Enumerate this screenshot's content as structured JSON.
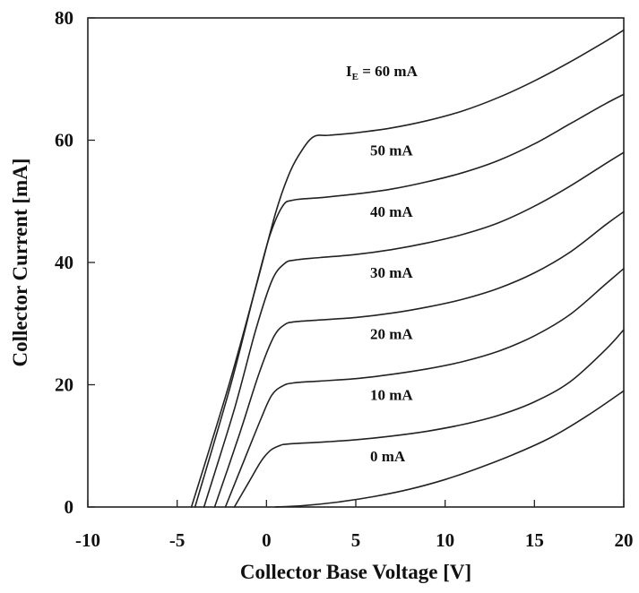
{
  "chart_data": {
    "type": "line",
    "title": "",
    "xlabel": "Collector Base Voltage [V]",
    "ylabel": "Collector Current [mA]",
    "xlim": [
      -10,
      20
    ],
    "ylim": [
      0,
      80
    ],
    "xticks": [
      -10,
      -5,
      0,
      5,
      10,
      15,
      20
    ],
    "yticks": [
      0,
      20,
      40,
      60,
      80
    ],
    "xtick_labels": [
      "-10",
      "-5",
      "0",
      "5",
      "10",
      "15",
      "20"
    ],
    "ytick_labels": [
      "0",
      "20",
      "40",
      "60",
      "80"
    ],
    "grid": false,
    "legend": "none",
    "series": [
      {
        "name": "0 mA",
        "label_main": "0 mA",
        "label_sub": "",
        "x": [
          0.5,
          2,
          4,
          6,
          8,
          10,
          12,
          14,
          16,
          18,
          20
        ],
        "y": [
          0,
          0.2,
          0.8,
          1.7,
          2.9,
          4.5,
          6.5,
          8.8,
          11.5,
          15,
          19
        ]
      },
      {
        "name": "10 mA",
        "label_main": "10 mA",
        "label_sub": "",
        "x": [
          -1.8,
          -1.0,
          -0.3,
          0.2,
          0.7,
          1.2,
          3,
          5,
          7,
          9,
          11,
          13,
          15,
          17,
          19,
          20
        ],
        "y": [
          0,
          4,
          7.5,
          9.2,
          10.0,
          10.3,
          10.6,
          11.0,
          11.6,
          12.4,
          13.5,
          15.0,
          17.2,
          20.5,
          25.8,
          29
        ]
      },
      {
        "name": "20 mA",
        "label_main": "20 mA",
        "label_sub": "",
        "x": [
          -2.3,
          -1.2,
          -0.3,
          0.3,
          0.9,
          1.5,
          3,
          5,
          7,
          9,
          11,
          13,
          15,
          17,
          19,
          20
        ],
        "y": [
          0,
          8,
          14.5,
          18.3,
          19.8,
          20.3,
          20.6,
          21.0,
          21.7,
          22.6,
          23.8,
          25.5,
          28.0,
          31.5,
          36.5,
          39
        ]
      },
      {
        "name": "30 mA",
        "label_main": "30 mA",
        "label_sub": "",
        "x": [
          -2.9,
          -1.5,
          -0.4,
          0.4,
          1.0,
          1.6,
          3,
          5,
          7,
          9,
          11,
          13,
          15,
          17,
          19,
          20
        ],
        "y": [
          0,
          12,
          22,
          27.8,
          29.8,
          30.3,
          30.6,
          31.0,
          31.7,
          32.7,
          34.0,
          35.8,
          38.3,
          41.7,
          46.2,
          48.3
        ]
      },
      {
        "name": "40 mA",
        "label_main": "40 mA",
        "label_sub": "",
        "x": [
          -3.5,
          -1.8,
          -0.6,
          0.3,
          1.0,
          1.6,
          3,
          5,
          7,
          9,
          11,
          13,
          15,
          17,
          19,
          20
        ],
        "y": [
          0,
          16,
          29,
          37,
          39.8,
          40.4,
          40.8,
          41.3,
          42.1,
          43.2,
          44.6,
          46.5,
          49.2,
          52.5,
          56.2,
          58
        ]
      },
      {
        "name": "50 mA",
        "label_main": "50 mA",
        "label_sub": "",
        "x": [
          -4.0,
          -2.0,
          -0.6,
          0.2,
          0.9,
          1.5,
          3,
          5,
          7,
          9,
          11,
          13,
          15,
          17,
          19,
          20
        ],
        "y": [
          0,
          20,
          36,
          44.5,
          49.2,
          50.2,
          50.6,
          51.2,
          52.0,
          53.2,
          54.7,
          56.7,
          59.4,
          62.7,
          66.0,
          67.5
        ]
      },
      {
        "name": "60 mA",
        "label_main": "I",
        "label_sub": "E",
        "label_prefix": "I",
        "label_rest": " = 60 mA",
        "x": [
          -4.2,
          -2.1,
          -0.5,
          0.5,
          1.2,
          1.8,
          2.6,
          3.5,
          5,
          7,
          9,
          11,
          13,
          15,
          17,
          19,
          20
        ],
        "y": [
          0,
          20,
          37,
          48,
          54,
          57.5,
          60.5,
          60.8,
          61.2,
          62.0,
          63.2,
          64.8,
          67.0,
          69.7,
          72.8,
          76.2,
          78
        ]
      }
    ],
    "curve_labels": {
      "ie_prefix": "I",
      "ie_sub": "E",
      "ie_rest": " = 60 mA",
      "others": [
        "50 mA",
        "40 mA",
        "30 mA",
        "20 mA",
        "10 mA",
        "0 mA"
      ]
    }
  }
}
